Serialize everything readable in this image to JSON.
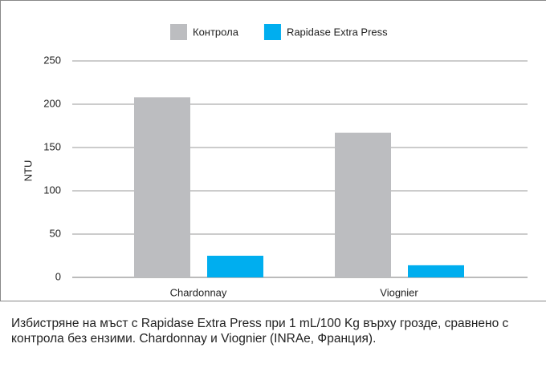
{
  "chart_data": {
    "type": "bar",
    "categories": [
      "Chardonnay",
      "Viognier"
    ],
    "series": [
      {
        "name": "Контрола",
        "color": "#bcbdc0",
        "values": [
          208,
          167
        ]
      },
      {
        "name": "Rapidase Extra Press",
        "color": "#00aeef",
        "values": [
          25,
          14
        ]
      }
    ],
    "ylabel": "NTU",
    "ylim": [
      0,
      250
    ],
    "yticks": [
      0,
      50,
      100,
      150,
      200,
      250
    ],
    "grid": true,
    "legend": "top",
    "caption": "Избистряне на мъст с Rapidase Extra Press при 1 mL/100 Kg върху грозде, сравнено с контрола без ензими. Chardonnay и Viognier (INRAe, Франция)."
  }
}
